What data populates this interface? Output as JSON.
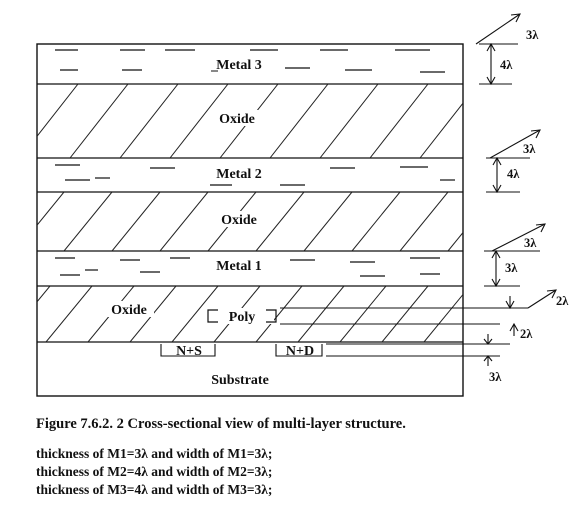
{
  "layers": {
    "metal3": "Metal 3",
    "oxide3": "Oxide",
    "metal2": "Metal 2",
    "oxide2": "Oxide",
    "metal1": "Metal 1",
    "oxide1": "Oxide",
    "poly": "Poly",
    "n_source": "N+S",
    "n_drain": "N+D",
    "substrate": "Substrate"
  },
  "dimensions": {
    "m3_width": "3λ",
    "m3_thickness": "4λ",
    "m2_width": "3λ",
    "m2_thickness": "4λ",
    "m1_width": "3λ",
    "m1_thickness": "3λ",
    "poly_width": "2λ",
    "poly_thickness": "2λ",
    "diff_depth": "3λ"
  },
  "caption": "Figure 7.6.2. 2 Cross-sectional view of multi-layer structure.",
  "notes": [
    "thickness of M1=3λ and width of M1=3λ;",
    "thickness of M2=4λ and width of M2=3λ;",
    "thickness of M3=4λ and width of M3=3λ;"
  ]
}
